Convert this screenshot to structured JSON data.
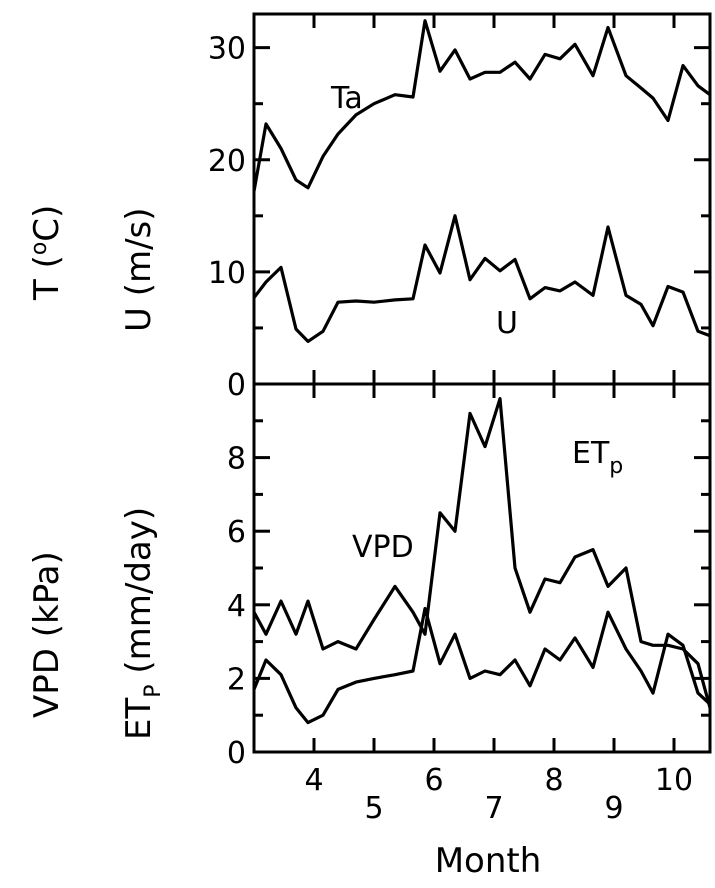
{
  "chart_data": [
    {
      "type": "line",
      "panel": "top",
      "ylabel_left": "T (oC)",
      "ylabel_right": "U (m/s)",
      "ylim": [
        0,
        33
      ],
      "y_ticks": [
        "0",
        "10",
        "20",
        "30"
      ],
      "x": [
        3.0,
        3.2,
        3.45,
        3.7,
        3.9,
        4.15,
        4.4,
        4.7,
        5.0,
        5.35,
        5.65,
        5.85,
        6.1,
        6.35,
        6.6,
        6.85,
        7.1,
        7.35,
        7.6,
        7.85,
        8.1,
        8.35,
        8.65,
        8.9,
        9.2,
        9.45,
        9.65,
        9.9,
        10.15,
        10.4,
        10.6
      ],
      "series": [
        {
          "name": "Ta",
          "values": [
            17.2,
            23.2,
            21.0,
            18.2,
            17.5,
            20.3,
            22.3,
            24.0,
            25.0,
            25.8,
            25.6,
            32.4,
            27.9,
            29.8,
            27.2,
            27.8,
            27.8,
            28.7,
            27.2,
            29.4,
            29.0,
            30.3,
            27.5,
            31.8,
            27.5,
            26.4,
            25.5,
            23.5,
            28.4,
            26.6,
            25.8
          ]
        },
        {
          "name": "U",
          "values": [
            7.7,
            9.1,
            10.4,
            4.9,
            3.8,
            4.7,
            7.3,
            7.4,
            7.3,
            7.5,
            7.6,
            12.4,
            9.9,
            15.0,
            9.3,
            11.2,
            10.1,
            11.1,
            7.6,
            8.6,
            8.3,
            9.1,
            7.9,
            14.0,
            7.9,
            7.1,
            5.2,
            8.7,
            8.2,
            4.7,
            4.3
          ]
        }
      ]
    },
    {
      "type": "line",
      "panel": "bottom",
      "ylabel_left": "VPD (kPa)",
      "ylabel_right": "ETP (mm/day)",
      "xlabel": "Month",
      "ylim": [
        0,
        10
      ],
      "y_ticks": [
        "0",
        "2",
        "4",
        "6",
        "8"
      ],
      "x_ticks": [
        "4",
        "5",
        "6",
        "7",
        "8",
        "9",
        "10"
      ],
      "x": [
        3.0,
        3.2,
        3.45,
        3.7,
        3.9,
        4.15,
        4.4,
        4.7,
        5.0,
        5.35,
        5.65,
        5.85,
        6.1,
        6.35,
        6.6,
        6.85,
        7.1,
        7.35,
        7.6,
        7.85,
        8.1,
        8.35,
        8.65,
        8.9,
        9.2,
        9.45,
        9.65,
        9.9,
        10.15,
        10.4,
        10.6
      ],
      "series": [
        {
          "name": "ETp",
          "values": [
            3.8,
            3.2,
            4.1,
            3.2,
            4.1,
            2.8,
            3.0,
            2.8,
            3.6,
            4.5,
            3.8,
            3.2,
            6.5,
            6.0,
            9.2,
            8.3,
            9.6,
            5.0,
            3.8,
            4.7,
            4.6,
            5.3,
            5.5,
            4.5,
            5.0,
            3.0,
            2.9,
            2.9,
            2.8,
            2.4,
            1.2
          ]
        },
        {
          "name": "VPD",
          "values": [
            1.7,
            2.5,
            2.1,
            1.2,
            0.8,
            1.0,
            1.7,
            1.9,
            2.0,
            2.1,
            2.2,
            3.9,
            2.4,
            3.2,
            2.0,
            2.2,
            2.1,
            2.5,
            1.8,
            2.8,
            2.5,
            3.1,
            2.3,
            3.8,
            2.8,
            2.2,
            1.6,
            3.2,
            2.9,
            1.6,
            1.3
          ]
        }
      ]
    }
  ],
  "labels": {
    "top_left_axis_main": "T (",
    "top_left_axis_sup": "o",
    "top_left_axis_end": "C)",
    "top_right_axis": "U (m/s)",
    "bottom_left_axis": "VPD (kPa)",
    "bottom_right_axis_main": "ET",
    "bottom_right_axis_sub": "P",
    "bottom_right_axis_end": " (mm/day)",
    "ta_label": "Ta",
    "u_label": "U",
    "vpd_label": "VPD",
    "etp_label_main": "ET",
    "etp_label_sub": "p",
    "xlabel": "Month"
  }
}
